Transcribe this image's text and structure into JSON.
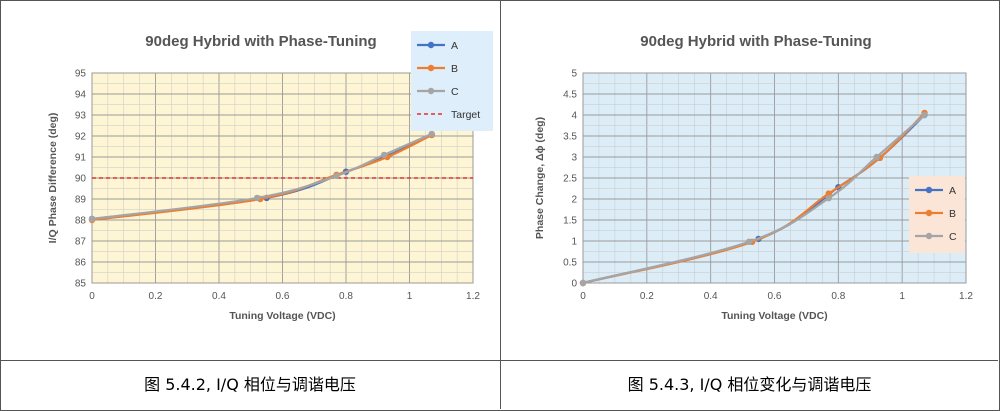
{
  "captions": {
    "left": "图  5.4.2, I/Q  相位与调谐电压",
    "right": "图  5.4.3, I/Q  相位变化与调谐电压"
  },
  "colors": {
    "A": "#4472c4",
    "B": "#ed7d31",
    "C": "#a5a5a5",
    "target": "#e03030",
    "left_bg": "#fdf5d3",
    "right_bg": "#dcedf8",
    "legend_bg": "#deeefa",
    "legend_bg_right": "#fbe5d6"
  },
  "chart_data": [
    {
      "type": "line",
      "title": "90deg Hybrid with Phase-Tuning",
      "xlabel": "Tuning Voltage (VDC)",
      "ylabel": "I/Q Phase Difference (deg)",
      "xlim": [
        0,
        1.2
      ],
      "ylim": [
        85,
        95
      ],
      "xticks": [
        "0",
        "0.2",
        "0.4",
        "0.6",
        "0.8",
        "1",
        "1.2"
      ],
      "yticks": [
        "85",
        "86",
        "87",
        "88",
        "89",
        "90",
        "91",
        "92",
        "93",
        "94",
        "95"
      ],
      "grid": true,
      "legend_position": "top-right",
      "series": [
        {
          "name": "A",
          "x": [
            0,
            0.55,
            0.8,
            0.93,
            1.07
          ],
          "y": [
            88.05,
            89.05,
            90.3,
            91.05,
            92.05
          ]
        },
        {
          "name": "B",
          "x": [
            0,
            0.53,
            0.77,
            0.93,
            1.07
          ],
          "y": [
            88.0,
            89.0,
            90.15,
            91.0,
            92.05
          ]
        },
        {
          "name": "C",
          "x": [
            0,
            0.52,
            0.77,
            0.92,
            1.07
          ],
          "y": [
            88.05,
            89.05,
            90.1,
            91.1,
            92.1
          ]
        }
      ],
      "reference_line": {
        "name": "Target",
        "y": 90
      }
    },
    {
      "type": "line",
      "title": "90deg Hybrid with Phase-Tuning",
      "xlabel": "Tuning Voltage (VDC)",
      "ylabel": "Phase Change, Δϕ (deg)",
      "xlim": [
        0,
        1.2
      ],
      "ylim": [
        0,
        5
      ],
      "xticks": [
        "0",
        "0.2",
        "0.4",
        "0.6",
        "0.8",
        "1",
        "1.2"
      ],
      "yticks": [
        "0",
        "0.5",
        "1",
        "1.5",
        "2",
        "2.5",
        "3",
        "3.5",
        "4",
        "4.5",
        "5"
      ],
      "grid": true,
      "legend_position": "right",
      "series": [
        {
          "name": "A",
          "x": [
            0,
            0.55,
            0.8,
            0.93,
            1.07
          ],
          "y": [
            0,
            1.05,
            2.28,
            2.98,
            4.0
          ]
        },
        {
          "name": "B",
          "x": [
            0,
            0.53,
            0.77,
            0.93,
            1.07
          ],
          "y": [
            0,
            0.98,
            2.13,
            2.98,
            4.05
          ]
        },
        {
          "name": "C",
          "x": [
            0,
            0.52,
            0.77,
            0.92,
            1.07
          ],
          "y": [
            0,
            0.98,
            2.02,
            3.0,
            4.0
          ]
        }
      ]
    }
  ]
}
